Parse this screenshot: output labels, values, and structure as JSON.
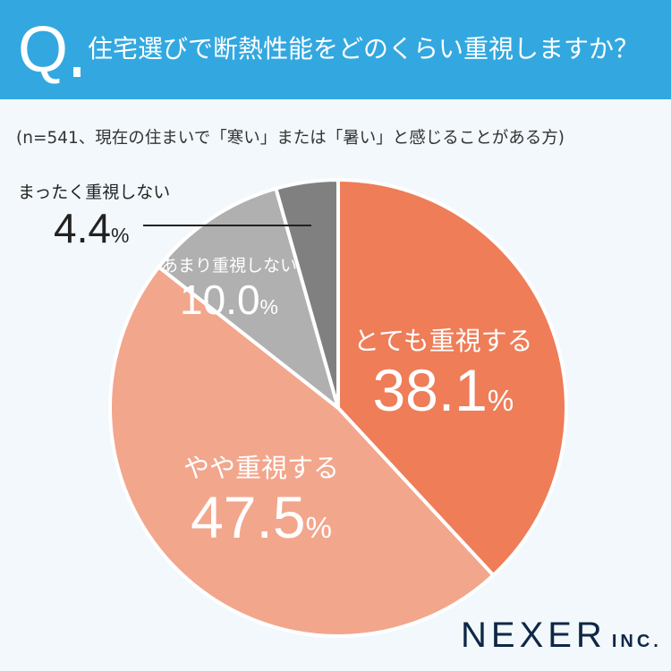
{
  "header": {
    "q": "Q",
    "title": "住宅選びで断熱性能をどのくらい重視しますか？"
  },
  "subtitle": "(n=541、現在の住まいで「寒い」または「暑い」と感じることがある方)",
  "chart_data": {
    "type": "pie",
    "title": "住宅選びで断熱性能をどのくらい重視しますか？",
    "categories": [
      "とても重視する",
      "やや重視する",
      "あまり重視しない",
      "まったく重視しない"
    ],
    "values": [
      38.1,
      47.5,
      10.0,
      4.4
    ],
    "unit": "%",
    "value_labels": [
      "38.1",
      "47.5",
      "10.0",
      "4.4"
    ],
    "colors": [
      "#ee7d58",
      "#f2a68c",
      "#b0b0b0",
      "#808080"
    ],
    "start": "top",
    "direction": "clockwise"
  },
  "logo": {
    "name": "NEXER",
    "suffix": "INC."
  }
}
